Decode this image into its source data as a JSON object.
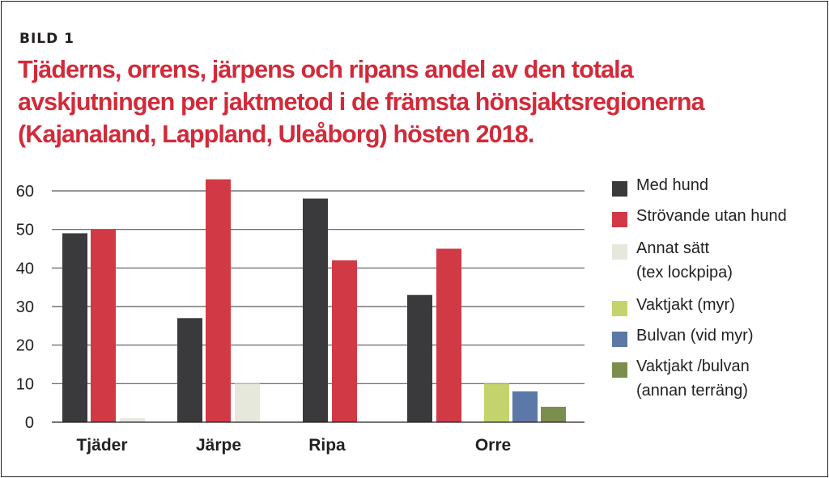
{
  "figure": {
    "label": "BILD 1",
    "title_lines": [
      "Tjäderns, orrens, järpens och ripans andel av den totala",
      "avskjutningen per jaktmetod i de främsta hönsjaktsregionerna",
      "(Kajanaland, Lappland, Uleåborg) hösten 2018."
    ]
  },
  "chart_data": {
    "type": "bar",
    "title": "Tjäderns, orrens, järpens och ripans andel av den totala avskjutningen per jaktmetod i de främsta hönsjaktsregionerna (Kajanaland, Lappland, Uleåborg) hösten 2018.",
    "xlabel": "",
    "ylabel": "",
    "ylim": [
      0,
      60
    ],
    "yticks": [
      0,
      10,
      20,
      30,
      40,
      50,
      60
    ],
    "grid": "horizontal",
    "legend_position": "right",
    "categories": [
      "Tjäder",
      "Järpe",
      "Ripa",
      "Orre"
    ],
    "series": [
      {
        "name": "Med hund",
        "color": "#3a3a3c",
        "values": [
          49,
          27,
          58,
          33
        ]
      },
      {
        "name": "Strövande utan hund",
        "color": "#d13a45",
        "values": [
          50,
          63,
          42,
          45
        ]
      },
      {
        "name": "Annat sätt\n(tex lockpipa)",
        "color": "#e6e8dc",
        "values": [
          1,
          10,
          null,
          null
        ]
      },
      {
        "name": "Vaktjakt (myr)",
        "color": "#c5d36c",
        "values": [
          null,
          null,
          null,
          10
        ]
      },
      {
        "name": "Bulvan (vid myr)",
        "color": "#5c78a8",
        "values": [
          null,
          null,
          null,
          8
        ]
      },
      {
        "name": "Vaktjakt /bulvan\n(annan terräng)",
        "color": "#7c8e4e",
        "values": [
          null,
          null,
          null,
          4
        ]
      }
    ]
  }
}
